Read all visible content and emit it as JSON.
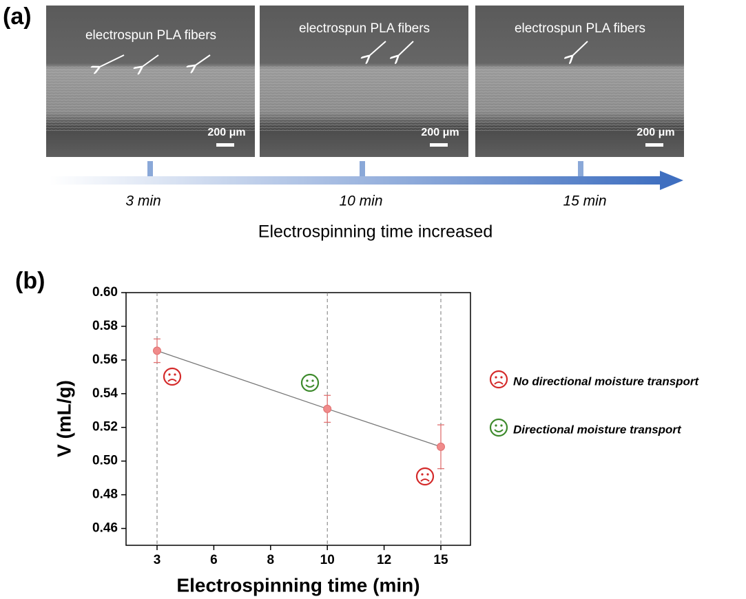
{
  "panel_a": {
    "label": "(a)",
    "images": [
      {
        "annotation": "electrospun PLA fibers",
        "scale_bar": "200 μm",
        "time": "3 min"
      },
      {
        "annotation": "electrospun PLA fibers",
        "scale_bar": "200 μm",
        "time": "10 min"
      },
      {
        "annotation": "electrospun PLA fibers",
        "scale_bar": "200 μm",
        "time": "15 min"
      }
    ],
    "axis_label": "Electrospinning time increased"
  },
  "chart_data": {
    "type": "line",
    "panel_label": "(b)",
    "x_label": "Electrospinning time (min)",
    "y_label": "V (mL/g)",
    "categories": [
      "3",
      "6",
      "8",
      "10",
      "12",
      "15"
    ],
    "values": [
      0.5655,
      null,
      null,
      0.531,
      null,
      0.5085
    ],
    "errors": [
      0.007,
      null,
      null,
      0.008,
      null,
      0.013
    ],
    "color": "#f08a8a",
    "line_color": "#777777",
    "ylim": [
      0.45,
      0.6
    ],
    "yticks": [
      0.46,
      0.48,
      {
        "value": 0.5,
        "label": "0.50"
      },
      0.52,
      0.54,
      0.56,
      0.58,
      {
        "value": 0.6,
        "label": "0.60"
      }
    ],
    "legend": [
      {
        "label": "No directional moisture transport",
        "color": "#d42a2a"
      },
      {
        "label": "Directional moisture transport",
        "color": "#3d8a2c"
      }
    ]
  }
}
